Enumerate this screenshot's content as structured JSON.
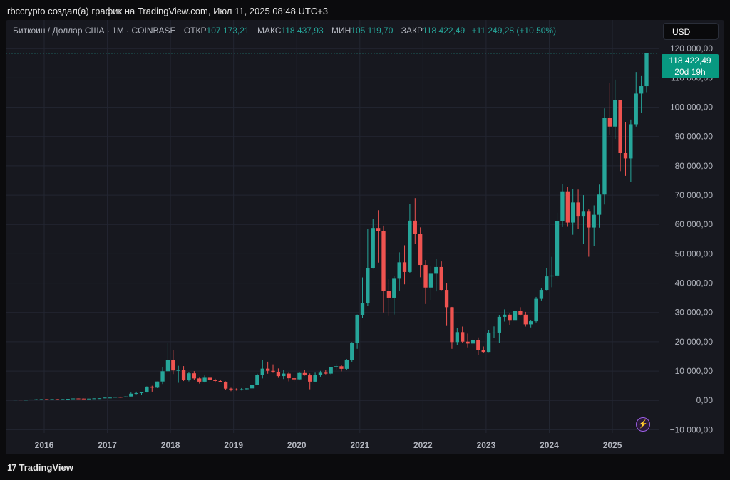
{
  "caption": "rbccrypto создал(а) график на TradingView.com, Июл 11, 2025 08:48 UTC+3",
  "legend": {
    "symbol": "Биткоин / Доллар США · 1M · COINBASE",
    "open_label": "ОТКР",
    "open": "107 173,21",
    "high_label": "МАКС",
    "high": "118 437,93",
    "low_label": "МИН",
    "low": "105 119,70",
    "close_label": "ЗАКР",
    "close": "118 422,49",
    "change": "+11 249,28 (+10,50%)"
  },
  "currency": "USD",
  "price_tag": {
    "price": "118 422,49",
    "countdown": "20d 19h"
  },
  "footer": {
    "logo_mark": "17",
    "brand": "TradingView"
  },
  "colors": {
    "up": "#26a69a",
    "down": "#ef5350",
    "panel": "#17181f",
    "grid": "#232632"
  },
  "chart_data": {
    "type": "candlestick",
    "title": "",
    "ylim": [
      -15000,
      122000
    ],
    "y_ticks": [
      -10000,
      0,
      10000,
      20000,
      30000,
      40000,
      50000,
      60000,
      70000,
      80000,
      90000,
      100000,
      110000,
      120000
    ],
    "y_tick_labels": [
      "−10 000,00",
      "0,00",
      "10 000,00",
      "20 000,00",
      "30 000,00",
      "40 000,00",
      "50 000,00",
      "60 000,00",
      "70 000,00",
      "80 000,00",
      "90 000,00",
      "100 000,00",
      "110 000,00",
      "120 000,00"
    ],
    "x_ticks": [
      "2016",
      "2017",
      "2018",
      "2019",
      "2020",
      "2021",
      "2022",
      "2023",
      "2024",
      "2025"
    ],
    "last_close": 118422.49,
    "interval": "1M",
    "candles": [
      [
        "2015-07",
        280,
        280,
        290,
        270
      ],
      [
        "2015-08",
        280,
        230,
        280,
        210
      ],
      [
        "2015-09",
        230,
        236,
        240,
        225
      ],
      [
        "2015-10",
        236,
        314,
        320,
        230
      ],
      [
        "2015-11",
        314,
        377,
        500,
        300
      ],
      [
        "2015-12",
        377,
        430,
        470,
        350
      ],
      [
        "2016-01",
        430,
        368,
        460,
        360
      ],
      [
        "2016-02",
        368,
        437,
        440,
        365
      ],
      [
        "2016-03",
        437,
        416,
        440,
        400
      ],
      [
        "2016-04",
        416,
        448,
        470,
        410
      ],
      [
        "2016-05",
        448,
        530,
        540,
        440
      ],
      [
        "2016-06",
        530,
        670,
        780,
        520
      ],
      [
        "2016-07",
        670,
        624,
        700,
        600
      ],
      [
        "2016-08",
        624,
        575,
        630,
        530
      ],
      [
        "2016-09",
        575,
        608,
        610,
        570
      ],
      [
        "2016-10",
        608,
        700,
        710,
        600
      ],
      [
        "2016-11",
        700,
        742,
        750,
        690
      ],
      [
        "2016-12",
        742,
        963,
        970,
        740
      ],
      [
        "2017-01",
        963,
        970,
        1150,
        780
      ],
      [
        "2017-02",
        970,
        1190,
        1200,
        920
      ],
      [
        "2017-03",
        1190,
        1080,
        1290,
        900
      ],
      [
        "2017-04",
        1080,
        1350,
        1350,
        1080
      ],
      [
        "2017-05",
        1350,
        2300,
        2700,
        1350
      ],
      [
        "2017-06",
        2300,
        2480,
        3000,
        2100
      ],
      [
        "2017-07",
        2480,
        2870,
        2900,
        1900
      ],
      [
        "2017-08",
        2870,
        4700,
        4800,
        2700
      ],
      [
        "2017-09",
        4700,
        4340,
        5000,
        3000
      ],
      [
        "2017-10",
        4340,
        6450,
        6450,
        4200
      ],
      [
        "2017-11",
        6450,
        9950,
        11400,
        5600
      ],
      [
        "2017-12",
        9950,
        13860,
        19700,
        9900
      ],
      [
        "2018-01",
        13860,
        10220,
        17200,
        9000
      ],
      [
        "2018-02",
        10220,
        10330,
        11800,
        6000
      ],
      [
        "2018-03",
        10330,
        6930,
        11700,
        6600
      ],
      [
        "2018-04",
        6930,
        9240,
        9760,
        6500
      ],
      [
        "2018-05",
        9240,
        7500,
        9990,
        7050
      ],
      [
        "2018-06",
        7500,
        6400,
        7750,
        5750
      ],
      [
        "2018-07",
        6400,
        7730,
        8500,
        6100
      ],
      [
        "2018-08",
        7730,
        7030,
        7750,
        5900
      ],
      [
        "2018-09",
        7030,
        6630,
        7400,
        6100
      ],
      [
        "2018-10",
        6630,
        6310,
        7000,
        6200
      ],
      [
        "2018-11",
        6310,
        4020,
        6500,
        3600
      ],
      [
        "2018-12",
        4020,
        3740,
        4300,
        3150
      ],
      [
        "2019-01",
        3740,
        3460,
        4100,
        3350
      ],
      [
        "2019-02",
        3460,
        3820,
        4200,
        3400
      ],
      [
        "2019-03",
        3820,
        4100,
        4150,
        3750
      ],
      [
        "2019-04",
        4100,
        5320,
        5600,
        4100
      ],
      [
        "2019-05",
        5320,
        8580,
        9100,
        5300
      ],
      [
        "2019-06",
        8580,
        10830,
        13900,
        7500
      ],
      [
        "2019-07",
        10830,
        10090,
        13200,
        9100
      ],
      [
        "2019-08",
        10090,
        9630,
        12300,
        9400
      ],
      [
        "2019-09",
        9630,
        8300,
        10900,
        7700
      ],
      [
        "2019-10",
        8300,
        9150,
        10400,
        7300
      ],
      [
        "2019-11",
        9150,
        7560,
        9500,
        6500
      ],
      [
        "2019-12",
        7560,
        7190,
        7700,
        6430
      ],
      [
        "2020-01",
        7190,
        9350,
        9580,
        6850
      ],
      [
        "2020-02",
        9350,
        8550,
        10500,
        8450
      ],
      [
        "2020-03",
        8550,
        6410,
        9200,
        3800
      ],
      [
        "2020-04",
        6410,
        8620,
        9460,
        6150
      ],
      [
        "2020-05",
        8620,
        9450,
        10080,
        8100
      ],
      [
        "2020-06",
        9450,
        9140,
        10400,
        8900
      ],
      [
        "2020-07",
        9140,
        11350,
        11450,
        8900
      ],
      [
        "2020-08",
        11350,
        11650,
        12480,
        10500
      ],
      [
        "2020-09",
        11650,
        10780,
        12100,
        9900
      ],
      [
        "2020-10",
        10780,
        13800,
        14100,
        10400
      ],
      [
        "2020-11",
        13800,
        19700,
        19900,
        13200
      ],
      [
        "2020-12",
        19700,
        28990,
        29300,
        17600
      ],
      [
        "2021-01",
        28990,
        33100,
        41950,
        28100
      ],
      [
        "2021-02",
        33100,
        45200,
        58350,
        32300
      ],
      [
        "2021-03",
        45200,
        58800,
        61800,
        44950
      ],
      [
        "2021-04",
        58800,
        57700,
        64850,
        47000
      ],
      [
        "2021-05",
        57700,
        37300,
        59600,
        30000
      ],
      [
        "2021-06",
        37300,
        35050,
        41300,
        28800
      ],
      [
        "2021-07",
        35050,
        41500,
        42300,
        29300
      ],
      [
        "2021-08",
        41500,
        47100,
        50500,
        37300
      ],
      [
        "2021-09",
        47100,
        43800,
        52900,
        39600
      ],
      [
        "2021-10",
        43800,
        61300,
        67000,
        43300
      ],
      [
        "2021-11",
        61300,
        56900,
        69000,
        53300
      ],
      [
        "2021-12",
        56900,
        46200,
        59000,
        42000
      ],
      [
        "2022-01",
        46200,
        38500,
        47900,
        32900
      ],
      [
        "2022-02",
        38500,
        43200,
        45800,
        34300
      ],
      [
        "2022-03",
        43200,
        45500,
        48200,
        37200
      ],
      [
        "2022-04",
        45500,
        37700,
        47400,
        37600
      ],
      [
        "2022-05",
        37700,
        31800,
        40000,
        25400
      ],
      [
        "2022-06",
        31800,
        19900,
        31900,
        17600
      ],
      [
        "2022-07",
        19900,
        23300,
        24700,
        18800
      ],
      [
        "2022-08",
        23300,
        20050,
        25200,
        19500
      ],
      [
        "2022-09",
        20050,
        19400,
        22800,
        18100
      ],
      [
        "2022-10",
        19400,
        20500,
        21100,
        18200
      ],
      [
        "2022-11",
        20500,
        17150,
        21500,
        15500
      ],
      [
        "2022-12",
        17150,
        16550,
        18400,
        16300
      ],
      [
        "2023-01",
        16550,
        23150,
        23950,
        16500
      ],
      [
        "2023-02",
        23150,
        23150,
        25250,
        21400
      ],
      [
        "2023-03",
        23150,
        28500,
        29200,
        19600
      ],
      [
        "2023-04",
        28500,
        29250,
        31050,
        26900
      ],
      [
        "2023-05",
        29250,
        27200,
        29850,
        25800
      ],
      [
        "2023-06",
        27200,
        30500,
        31400,
        24800
      ],
      [
        "2023-07",
        30500,
        29250,
        31800,
        28900
      ],
      [
        "2023-08",
        29250,
        25950,
        30200,
        25200
      ],
      [
        "2023-09",
        25950,
        27000,
        27500,
        24900
      ],
      [
        "2023-10",
        27000,
        34650,
        35300,
        26600
      ],
      [
        "2023-11",
        34650,
        37700,
        38450,
        34100
      ],
      [
        "2023-12",
        37700,
        42300,
        45000,
        37600
      ],
      [
        "2024-01",
        42300,
        42600,
        48950,
        38600
      ],
      [
        "2024-02",
        42600,
        61200,
        64000,
        41900
      ],
      [
        "2024-03",
        61200,
        71300,
        73800,
        59100
      ],
      [
        "2024-04",
        71300,
        60650,
        72700,
        59200
      ],
      [
        "2024-05",
        60650,
        67500,
        72000,
        56500
      ],
      [
        "2024-06",
        67500,
        62700,
        71900,
        58400
      ],
      [
        "2024-07",
        62700,
        64600,
        70000,
        53500
      ],
      [
        "2024-08",
        64600,
        58950,
        65100,
        49000
      ],
      [
        "2024-09",
        58950,
        63300,
        66500,
        52600
      ],
      [
        "2024-10",
        63300,
        70200,
        73600,
        58900
      ],
      [
        "2024-11",
        70200,
        96400,
        99600,
        66800
      ],
      [
        "2024-12",
        96400,
        93400,
        108300,
        90500
      ],
      [
        "2025-01",
        93400,
        102400,
        109400,
        89200
      ],
      [
        "2025-02",
        102400,
        84350,
        102500,
        78200
      ],
      [
        "2025-03",
        84350,
        82550,
        95000,
        76600
      ],
      [
        "2025-04",
        82550,
        94200,
        95800,
        74600
      ],
      [
        "2025-05",
        94200,
        104650,
        112000,
        93400
      ],
      [
        "2025-06",
        104650,
        107173.21,
        110600,
        98200
      ],
      [
        "2025-07",
        107173.21,
        118422.49,
        118437.93,
        105119.7
      ]
    ]
  }
}
